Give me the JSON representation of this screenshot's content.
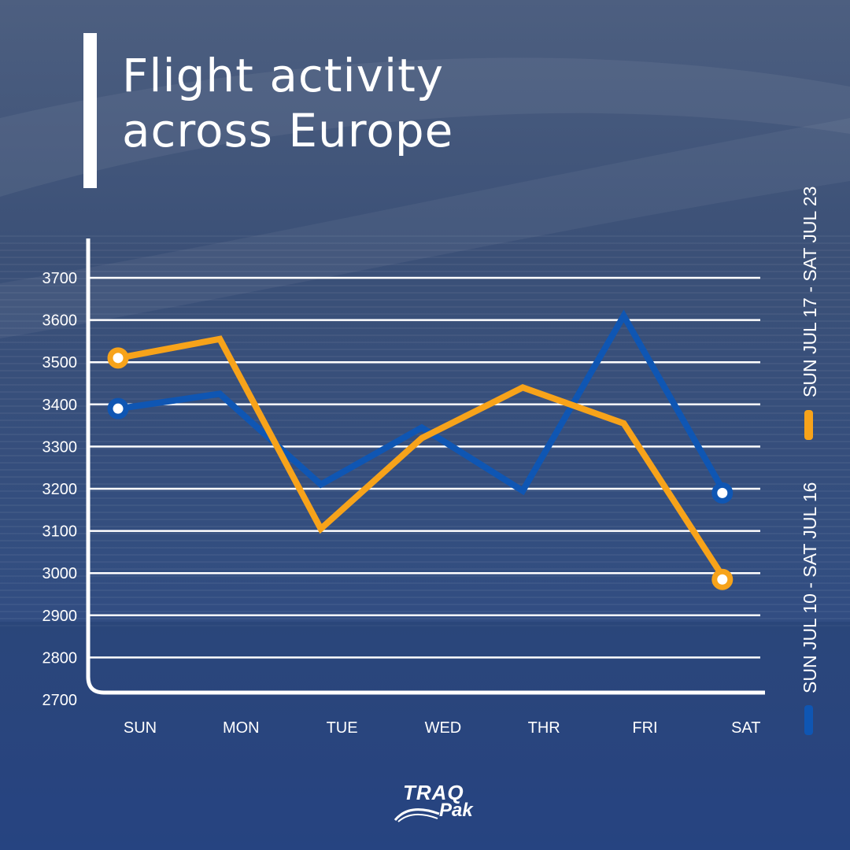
{
  "title": "Flight activity across Europe",
  "colors": {
    "orange": "#f7a31a",
    "blue": "#0f56b3",
    "grid": "#ffffff",
    "text": "#ffffff"
  },
  "logo": {
    "top": "TRAQ",
    "bottom": "Pak"
  },
  "chart_data": {
    "type": "line",
    "title": "Flight activity across Europe",
    "xlabel": "",
    "ylabel": "",
    "categories": [
      "SUN",
      "MON",
      "TUE",
      "WED",
      "THR",
      "FRI",
      "SAT"
    ],
    "yticks": [
      2700,
      2800,
      2900,
      3000,
      3100,
      3200,
      3300,
      3400,
      3500,
      3600,
      3700
    ],
    "ylim": [
      2700,
      3700
    ],
    "grid": true,
    "legend_position": "right (rotated)",
    "series": [
      {
        "name": "SUN JUL 17 - SAT JUL 23",
        "color": "#f7a31a",
        "values": [
          3510,
          3555,
          3105,
          3320,
          3440,
          3355,
          2985
        ]
      },
      {
        "name": "SUN JUL 10 - SAT JUL 16",
        "color": "#0f56b3",
        "values": [
          3390,
          3425,
          3210,
          3345,
          3195,
          3610,
          3190
        ]
      }
    ]
  }
}
